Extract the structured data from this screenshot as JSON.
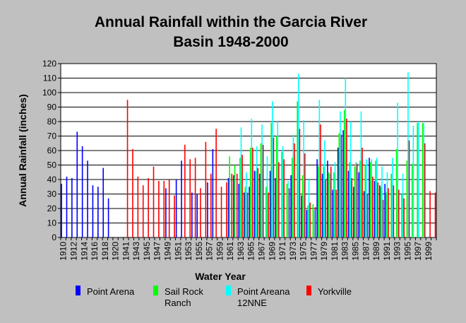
{
  "chart_data": {
    "type": "bar",
    "title": "Annual Rainfall within the Garcia River Basin 1948-2000",
    "title_lines": [
      "Annual Rainfall within the Garcia River",
      "Basin 1948-2000"
    ],
    "xlabel": "Water Year",
    "ylabel": "Annual Rainfall (inches)",
    "ylim": [
      0,
      120
    ],
    "yticks": [
      0,
      10,
      20,
      30,
      40,
      50,
      60,
      70,
      80,
      90,
      100,
      110,
      120
    ],
    "grid": true,
    "legend_position": "bottom",
    "x_tick_labels": [
      "1910",
      "1912",
      "1914",
      "1916",
      "1918",
      "1920",
      "1941",
      "1943",
      "1945",
      "1947",
      "1949",
      "1951",
      "1953",
      "1955",
      "1957",
      "1959",
      "1961",
      "1963",
      "1965",
      "1967",
      "1969",
      "1971",
      "1973",
      "1975",
      "1977",
      "1979",
      "1981",
      "1983",
      "1985",
      "1987",
      "1989",
      "1991",
      "1993",
      "1995",
      "1997",
      "1999"
    ],
    "categories": [
      "1910",
      "1911",
      "1912",
      "1913",
      "1914",
      "1915",
      "1916",
      "1917",
      "1918",
      "1919",
      "1920",
      "1921",
      "1941",
      "1942",
      "1943",
      "1944",
      "1945",
      "1946",
      "1947",
      "1948",
      "1949",
      "1950",
      "1951",
      "1952",
      "1953",
      "1954",
      "1955",
      "1956",
      "1957",
      "1958",
      "1959",
      "1960",
      "1961",
      "1962",
      "1963",
      "1964",
      "1965",
      "1966",
      "1967",
      "1968",
      "1969",
      "1970",
      "1971",
      "1972",
      "1973",
      "1974",
      "1975",
      "1976",
      "1977",
      "1978",
      "1979",
      "1980",
      "1981",
      "1982",
      "1983",
      "1984",
      "1985",
      "1986",
      "1987",
      "1988",
      "1989",
      "1990",
      "1991",
      "1992",
      "1993",
      "1994",
      "1995",
      "1996",
      "1997",
      "1998",
      "1999",
      "2000"
    ],
    "series": [
      {
        "name": "Point Arena",
        "color": "#0000ff",
        "values": [
          37,
          42,
          41,
          73,
          63,
          53,
          36,
          35,
          48,
          27,
          null,
          null,
          null,
          null,
          null,
          null,
          null,
          null,
          null,
          null,
          34,
          null,
          40,
          53,
          null,
          31,
          30,
          null,
          38,
          61,
          null,
          null,
          41,
          43,
          37,
          31,
          35,
          46,
          44,
          null,
          46,
          41,
          null,
          null,
          43,
          null,
          29,
          19,
          null,
          54,
          44,
          53,
          33,
          62,
          74,
          46,
          35,
          45,
          32,
          55,
          39,
          36,
          37,
          null,
          null,
          null,
          null,
          null,
          null,
          null,
          null,
          null
        ]
      },
      {
        "name": "Sail Rock Ranch",
        "color": "#00ff00",
        "values": [
          null,
          null,
          null,
          null,
          null,
          null,
          null,
          null,
          null,
          null,
          null,
          null,
          null,
          null,
          null,
          null,
          null,
          null,
          null,
          null,
          null,
          null,
          null,
          null,
          null,
          null,
          null,
          null,
          null,
          null,
          null,
          null,
          56,
          50,
          55,
          35,
          62,
          46,
          65,
          35,
          79,
          70,
          59,
          37,
          55,
          94,
          43,
          22,
          23,
          49,
          49,
          45,
          45,
          72,
          88,
          52,
          49,
          53,
          50,
          52,
          53,
          35,
          31,
          44,
          61,
          30,
          53,
          51,
          79,
          79,
          null,
          null
        ]
      },
      {
        "name": "Point Areana 12NNE",
        "color": "#00ffff",
        "values": [
          null,
          null,
          null,
          null,
          null,
          null,
          null,
          null,
          null,
          null,
          null,
          null,
          null,
          null,
          null,
          null,
          null,
          null,
          null,
          null,
          null,
          null,
          null,
          null,
          null,
          null,
          null,
          null,
          null,
          null,
          null,
          null,
          null,
          null,
          76,
          45,
          82,
          63,
          78,
          56,
          94,
          80,
          63,
          39,
          71,
          113,
          81,
          40,
          19,
          95,
          67,
          44,
          52,
          87,
          110,
          80,
          52,
          87,
          54,
          54,
          55,
          49,
          45,
          55,
          93,
          44,
          114,
          77,
          80,
          79,
          null,
          null
        ]
      },
      {
        "name": "Yorkville",
        "color": "#ff0000",
        "values": [
          null,
          null,
          null,
          null,
          null,
          null,
          null,
          null,
          null,
          null,
          null,
          null,
          95,
          61,
          42,
          36,
          41,
          49,
          39,
          39,
          40,
          29,
          null,
          64,
          54,
          55,
          34,
          66,
          44,
          75,
          35,
          38,
          44,
          44,
          57,
          31,
          62,
          48,
          64,
          31,
          69,
          52,
          54,
          34,
          65,
          75,
          58,
          24,
          21,
          78,
          40,
          49,
          33,
          71,
          82,
          41,
          51,
          62,
          30,
          42,
          38,
          26,
          34,
          36,
          33,
          27,
          67,
          null,
          null,
          65,
          32,
          31
        ]
      }
    ]
  },
  "legend": {
    "items": [
      {
        "line1": "Point Arena",
        "line2": "",
        "color": "#0000ff"
      },
      {
        "line1": "Sail Rock",
        "line2": "Ranch",
        "color": "#00ff00"
      },
      {
        "line1": "Point Areana",
        "line2": "12NNE",
        "color": "#00ffff"
      },
      {
        "line1": "Yorkville",
        "line2": "",
        "color": "#ff0000"
      }
    ]
  }
}
